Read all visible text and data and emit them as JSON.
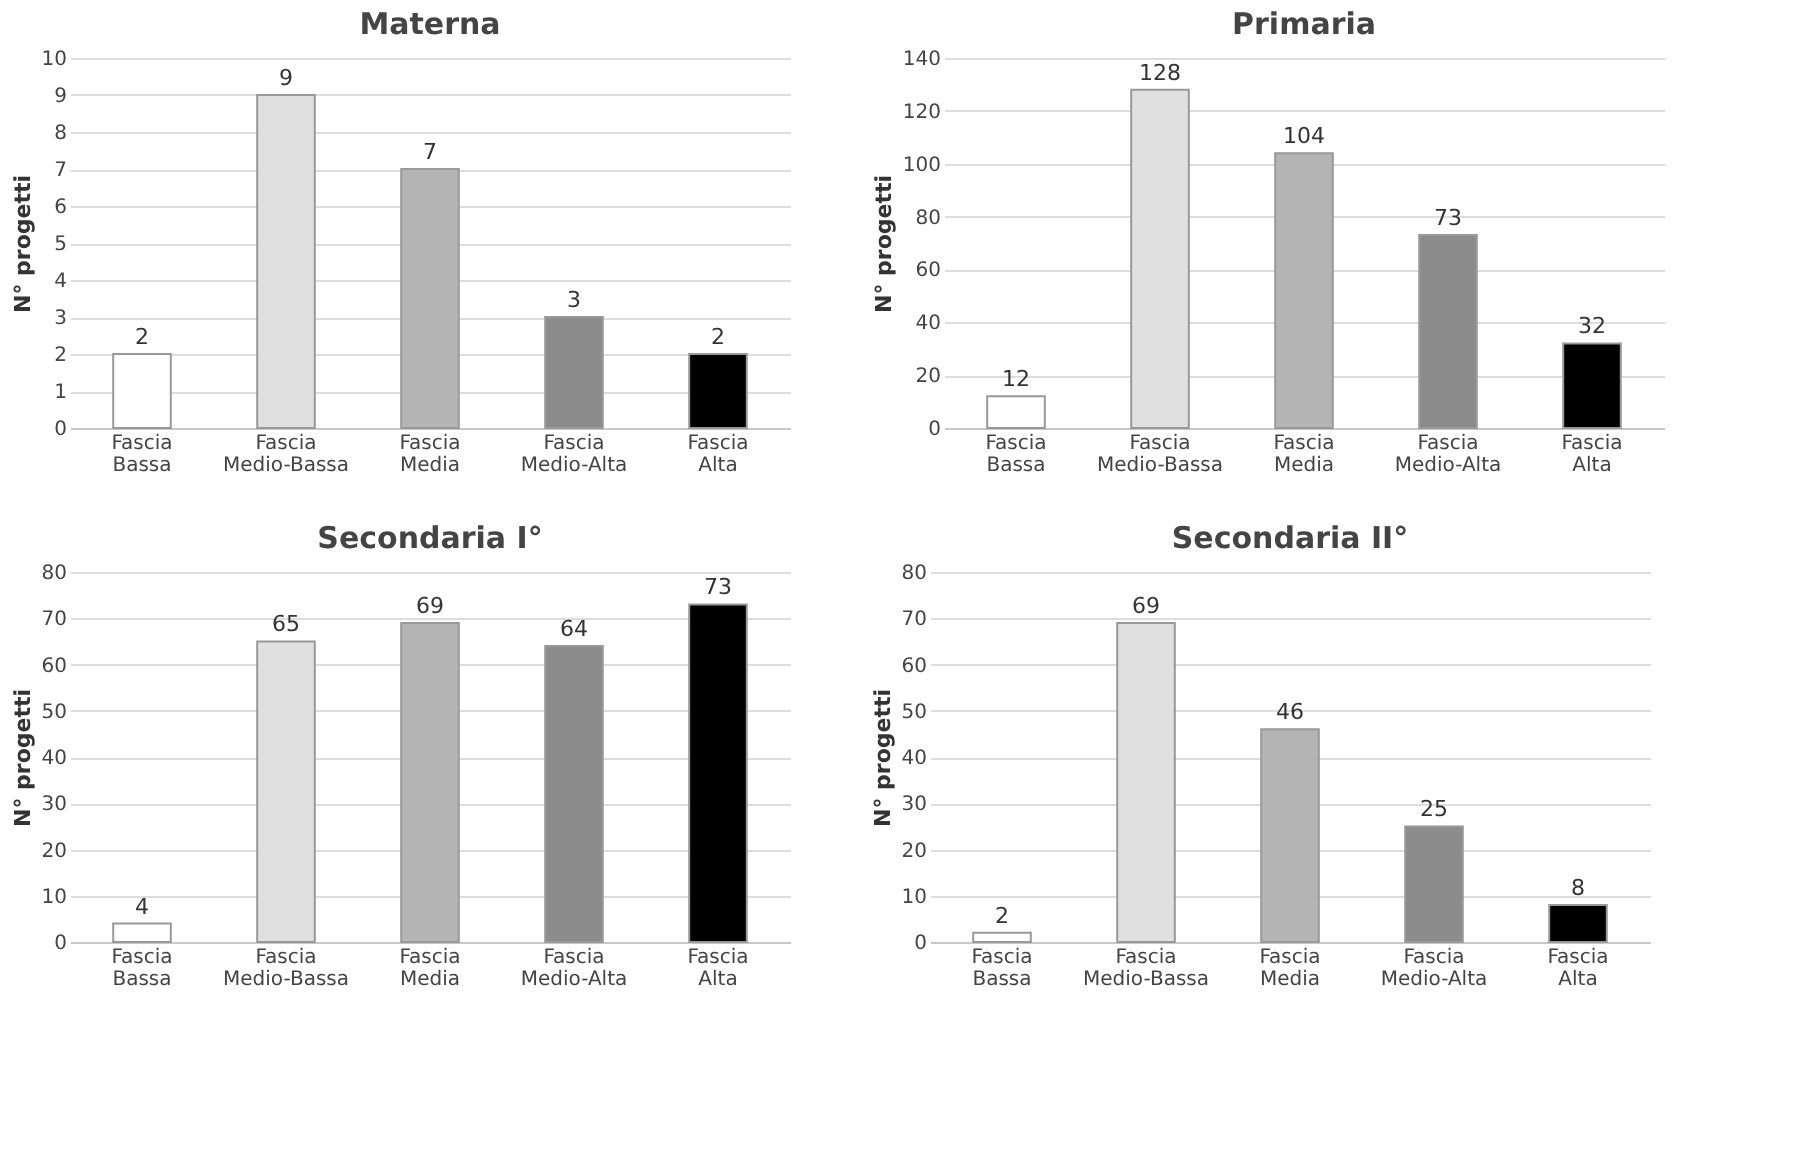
{
  "chart_data": [
    {
      "type": "bar",
      "title": "Materna",
      "ylabel": "N° progetti",
      "categories": [
        "Fascia Bassa",
        "Fascia Medio-Bassa",
        "Fascia Media",
        "Fascia Medio-Alta",
        "Fascia Alta"
      ],
      "values": [
        2,
        9,
        7,
        3,
        2
      ],
      "colors": [
        "#ffffff",
        "#e0e0e0",
        "#b4b4b4",
        "#8c8c8c",
        "#000000"
      ],
      "ylim": [
        0,
        10
      ],
      "yticks": [
        0,
        1,
        2,
        3,
        4,
        5,
        6,
        7,
        8,
        9,
        10
      ],
      "grid": "y",
      "data_labels": true
    },
    {
      "type": "bar",
      "title": "Primaria",
      "ylabel": "N° progetti",
      "categories": [
        "Fascia Bassa",
        "Fascia Medio-Bassa",
        "Fascia Media",
        "Fascia Medio-Alta",
        "Fascia Alta"
      ],
      "values": [
        12,
        128,
        104,
        73,
        32
      ],
      "colors": [
        "#ffffff",
        "#e0e0e0",
        "#b4b4b4",
        "#8c8c8c",
        "#000000"
      ],
      "ylim": [
        0,
        140
      ],
      "yticks": [
        0,
        20,
        40,
        60,
        80,
        100,
        120,
        140
      ],
      "grid": "y",
      "data_labels": true
    },
    {
      "type": "bar",
      "title": "Secondaria I°",
      "ylabel": "N° progetti",
      "categories": [
        "Fascia Bassa",
        "Fascia Medio-Bassa",
        "Fascia Media",
        "Fascia Medio-Alta",
        "Fascia Alta"
      ],
      "values": [
        4,
        65,
        69,
        64,
        73
      ],
      "colors": [
        "#ffffff",
        "#e0e0e0",
        "#b4b4b4",
        "#8c8c8c",
        "#000000"
      ],
      "ylim": [
        0,
        80
      ],
      "yticks": [
        0,
        10,
        20,
        30,
        40,
        50,
        60,
        70,
        80
      ],
      "grid": "y",
      "data_labels": true
    },
    {
      "type": "bar",
      "title": "Secondaria II°",
      "ylabel": "N° progetti",
      "categories": [
        "Fascia Bassa",
        "Fascia Medio-Bassa",
        "Fascia Media",
        "Fascia Medio-Alta",
        "Fascia Alta"
      ],
      "values": [
        2,
        69,
        46,
        25,
        8
      ],
      "colors": [
        "#ffffff",
        "#e0e0e0",
        "#b4b4b4",
        "#8c8c8c",
        "#000000"
      ],
      "ylim": [
        0,
        80
      ],
      "yticks": [
        0,
        10,
        20,
        30,
        40,
        50,
        60,
        70,
        80
      ],
      "grid": "y",
      "data_labels": true
    }
  ]
}
